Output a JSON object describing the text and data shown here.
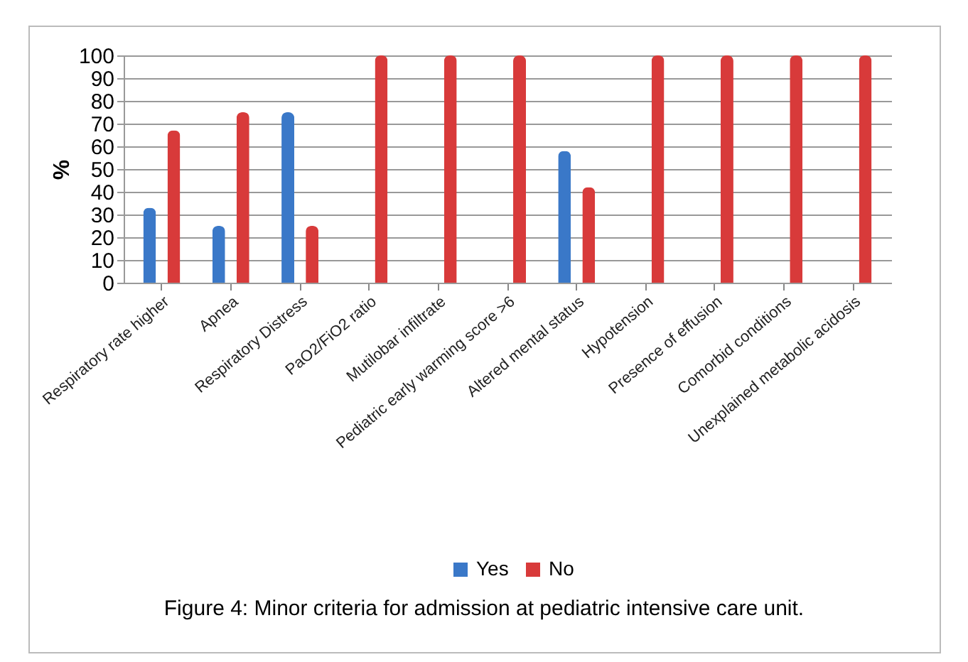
{
  "chart_data": {
    "type": "bar",
    "ylabel": "%",
    "categories": [
      "Respiratory rate higher",
      "Apnea",
      "Respiratory Distress",
      "PaO2/FiO2 ratio",
      "Mutilobar infiltrate",
      "Pediatric early warming score >6",
      "Altered mental status",
      "Hypotension",
      "Presence of effusion",
      "Comorbid conditions",
      "Unexplained metabolic acidosis"
    ],
    "series": [
      {
        "name": "Yes",
        "color": "#3a78c8",
        "values": [
          33,
          25,
          75,
          0,
          0,
          0,
          58,
          0,
          0,
          0,
          0
        ]
      },
      {
        "name": "No",
        "color": "#d83a3a",
        "values": [
          67,
          75,
          25,
          100,
          100,
          100,
          42,
          100,
          100,
          100,
          100
        ]
      }
    ],
    "ylim": [
      0,
      100
    ],
    "yticks": [
      0,
      10,
      20,
      30,
      40,
      50,
      60,
      70,
      80,
      90,
      100
    ],
    "grid": "y",
    "legend": "bottom",
    "annotations": [
      "Figure 4: Minor criteria for admission at pediatric intensive care unit."
    ]
  }
}
